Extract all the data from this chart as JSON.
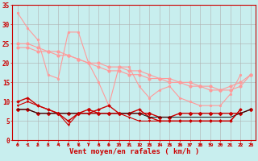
{
  "xlabel": "Vent moyen/en rafales ( km/h )",
  "background_color": "#c8eeee",
  "grid_color": "#b0b0b0",
  "x": [
    0,
    1,
    2,
    3,
    4,
    5,
    6,
    7,
    8,
    9,
    10,
    11,
    12,
    13,
    14,
    15,
    16,
    17,
    18,
    19,
    20,
    21,
    22,
    23
  ],
  "line1": [
    33,
    29,
    26,
    17,
    16,
    28,
    28,
    20,
    15,
    9,
    19,
    19,
    14,
    11,
    13,
    14,
    11,
    10,
    9,
    9,
    9,
    12,
    17,
    null
  ],
  "line2": [
    25,
    25,
    24,
    23,
    23,
    22,
    21,
    20,
    19,
    18,
    18,
    17,
    17,
    16,
    16,
    15,
    15,
    14,
    14,
    13,
    13,
    14,
    15,
    17
  ],
  "line3": [
    24,
    24,
    23,
    23,
    22,
    22,
    21,
    20,
    20,
    19,
    19,
    18,
    18,
    17,
    16,
    16,
    15,
    15,
    14,
    14,
    13,
    13,
    14,
    17
  ],
  "line4": [
    10,
    11,
    9,
    8,
    7,
    5,
    7,
    7,
    8,
    9,
    7,
    7,
    8,
    6,
    5,
    5,
    5,
    5,
    5,
    5,
    5,
    5,
    8,
    null
  ],
  "line5": [
    8,
    8,
    7,
    7,
    7,
    7,
    7,
    8,
    7,
    7,
    7,
    7,
    7,
    7,
    6,
    6,
    7,
    7,
    7,
    7,
    7,
    7,
    7,
    8
  ],
  "line6": [
    8,
    8,
    7,
    7,
    7,
    7,
    7,
    7,
    7,
    7,
    7,
    7,
    7,
    6,
    6,
    6,
    6,
    6,
    6,
    6,
    6,
    6,
    7,
    8
  ],
  "line7": [
    9,
    10,
    9,
    8,
    7,
    4,
    7,
    7,
    7,
    7,
    7,
    6,
    5,
    5,
    5,
    5,
    5,
    5,
    5,
    5,
    5,
    5,
    8,
    null
  ],
  "arrow_angles": [
    90,
    45,
    90,
    90,
    90,
    90,
    270,
    270,
    90,
    90,
    270,
    90,
    90,
    90,
    90,
    90,
    90,
    45,
    90,
    315,
    315,
    45,
    90,
    90
  ],
  "ylim": [
    0,
    35
  ],
  "yticks": [
    0,
    5,
    10,
    15,
    20,
    25,
    30,
    35
  ],
  "xticks": [
    0,
    1,
    2,
    3,
    4,
    5,
    6,
    7,
    8,
    9,
    10,
    11,
    12,
    13,
    14,
    15,
    16,
    17,
    18,
    19,
    20,
    21,
    22,
    23
  ],
  "color_light": "#ff9999",
  "color_dark": "#cc0000",
  "color_black": "#111111",
  "arrow_color": "#cc0000"
}
